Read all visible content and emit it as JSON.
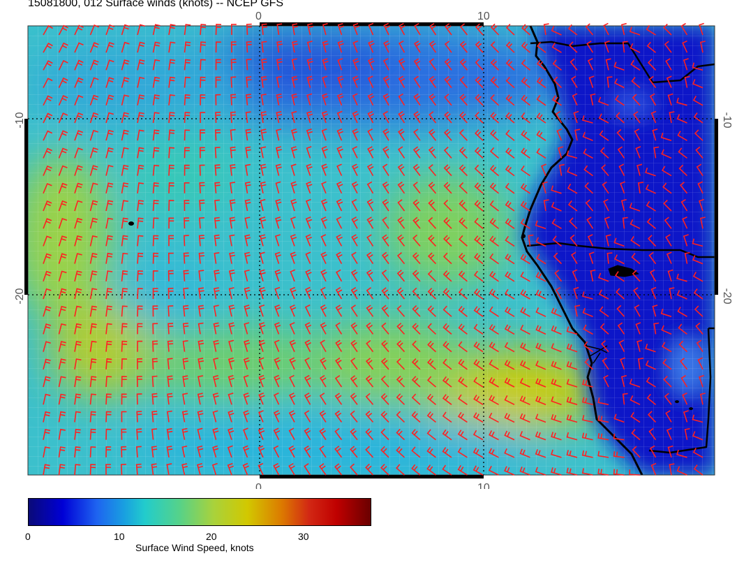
{
  "title": "15081800, 012 Surface winds (knots) -- NCEP GFS",
  "map": {
    "lon_labels_top": [
      "0",
      "10"
    ],
    "lon_labels_bottom": [
      "0",
      "10"
    ],
    "lat_labels_left": [
      "-10",
      "-20"
    ],
    "lat_labels_right": [
      "-10",
      "-20"
    ],
    "barb_color": "#ff2020"
  },
  "colorbar": {
    "label": "Surface Wind Speed, knots",
    "ticks": [
      "0",
      "10",
      "20",
      "30"
    ],
    "colors": [
      "#0a0a78",
      "#0000d6",
      "#1e64f0",
      "#19a0e0",
      "#22cccc",
      "#55d28a",
      "#a8d23c",
      "#d2c800",
      "#dc7a00",
      "#d22814",
      "#c00000",
      "#6a0000"
    ]
  }
}
